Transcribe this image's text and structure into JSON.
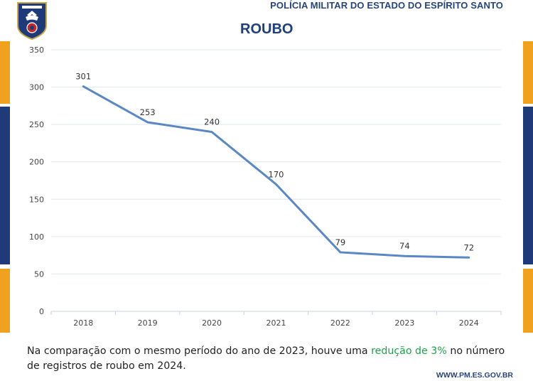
{
  "header": {
    "organization": "POLÍCIA MILITAR DO ESTADO DO ESPÍRITO SANTO",
    "slide_title": "ROUBO"
  },
  "colors": {
    "line": "#5b87c5",
    "brand_navy": "#1e3a78",
    "brand_orange": "#f0a21e",
    "highlight_green": "#1fa14a"
  },
  "chart_data": {
    "type": "line",
    "categories": [
      "2018",
      "2019",
      "2020",
      "2021",
      "2022",
      "2023",
      "2024"
    ],
    "values": [
      301,
      253,
      240,
      170,
      79,
      74,
      72
    ],
    "y_ticks": [
      "0",
      "50",
      "100",
      "150",
      "200",
      "250",
      "300",
      "350"
    ],
    "ylim": [
      0,
      350
    ],
    "grid": true,
    "data_labels": true,
    "legend": "none"
  },
  "caption": {
    "before": "Na comparação com o mesmo período do ano de 2023, houve uma ",
    "highlight": "redução de 3%",
    "after": " no número de registros de roubo em 2024."
  },
  "footer": {
    "url": "WWW.PM.ES.GOV.BR"
  }
}
